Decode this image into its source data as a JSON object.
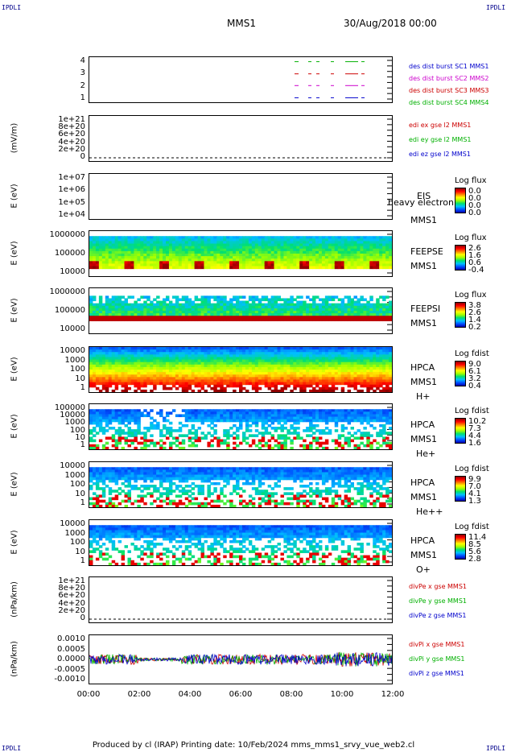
{
  "corner_label": "IPDLI",
  "header": {
    "spacecraft": "MMS1",
    "date": "30/Aug/2018 00:00"
  },
  "footer": {
    "text": "Produced by cl (IRAP)    Printing date: 10/Feb/2024    mms_mms1_srvy_vue_web2.cl"
  },
  "colors": {
    "red": "#cc0000",
    "green": "#00b000",
    "blue": "#0000cc",
    "magenta": "#cc00cc"
  },
  "chart_data": [
    {
      "type": "line",
      "ylabel": "",
      "ticks": [
        "4",
        "3",
        "2",
        "1"
      ],
      "legend": [
        {
          "text": "des dist burst SC1 MMS1",
          "color": "#0000cc"
        },
        {
          "text": "des dist burst SC2 MMS2",
          "color": "#cc00cc"
        },
        {
          "text": "des dist burst SC3 MMS3",
          "color": "#cc0000"
        },
        {
          "text": "des dist burst SC4 MMS4",
          "color": "#00b000"
        }
      ]
    },
    {
      "type": "line",
      "ylabel": "(mV/m)",
      "ticks": [
        "1e+21",
        "8e+20",
        "6e+20",
        "4e+20",
        "2e+20",
        "0"
      ],
      "legend": [
        {
          "text": "edi ex gse l2 MMS1",
          "color": "#cc0000"
        },
        {
          "text": "edi ey gse l2 MMS1",
          "color": "#00b000"
        },
        {
          "text": "edi ez gse l2 MMS1",
          "color": "#0000cc"
        }
      ]
    },
    {
      "type": "heatmap",
      "ylabel": "E (eV)",
      "ticks": [
        "1e+07",
        "1e+06",
        "1e+05",
        "1e+04"
      ],
      "instrument": [
        "EIS",
        "MMS1"
      ],
      "overlay": "heavy electron to",
      "colorbar": {
        "title": "Log flux",
        "values": [
          "0.0",
          "0.0",
          "0.0",
          "0.0"
        ]
      }
    },
    {
      "type": "heatmap",
      "ylabel": "E (eV)",
      "ticks": [
        "1000000",
        "100000",
        "10000"
      ],
      "instrument": [
        "FEEPSE",
        "MMS1"
      ],
      "colorbar": {
        "title": "Log flux",
        "values": [
          "2.6",
          "1.6",
          "0.6",
          "-0.4"
        ]
      }
    },
    {
      "type": "heatmap",
      "ylabel": "E (eV)",
      "ticks": [
        "1000000",
        "100000",
        "10000"
      ],
      "instrument": [
        "FEEPSI",
        "MMS1"
      ],
      "colorbar": {
        "title": "Log flux",
        "values": [
          "3.8",
          "2.6",
          "1.4",
          "0.2"
        ]
      }
    },
    {
      "type": "heatmap",
      "ylabel": "E (eV)",
      "ticks": [
        "10000",
        "1000",
        "100",
        "10",
        "1"
      ],
      "instrument": [
        "HPCA",
        "MMS1",
        "H+"
      ],
      "colorbar": {
        "title": "Log fdist",
        "values": [
          "9.0",
          "6.1",
          "3.2",
          "0.4"
        ]
      }
    },
    {
      "type": "heatmap",
      "ylabel": "E (eV)",
      "ticks": [
        "100000",
        "10000",
        "1000",
        "100",
        "10",
        "1"
      ],
      "instrument": [
        "HPCA",
        "MMS1",
        "He+"
      ],
      "colorbar": {
        "title": "Log fdist",
        "values": [
          "10.2",
          "7.3",
          "4.4",
          "1.6"
        ]
      }
    },
    {
      "type": "heatmap",
      "ylabel": "E (eV)",
      "ticks": [
        "10000",
        "1000",
        "100",
        "10",
        "1"
      ],
      "instrument": [
        "HPCA",
        "MMS1",
        "He++"
      ],
      "colorbar": {
        "title": "Log fdist",
        "values": [
          "9.9",
          "7.0",
          "4.1",
          "1.3"
        ]
      }
    },
    {
      "type": "heatmap",
      "ylabel": "E (eV)",
      "ticks": [
        "10000",
        "1000",
        "100",
        "10",
        "1"
      ],
      "instrument": [
        "HPCA",
        "MMS1",
        "O+"
      ],
      "colorbar": {
        "title": "Log fdist",
        "values": [
          "11.4",
          "8.5",
          "5.6",
          "2.8"
        ]
      }
    },
    {
      "type": "line",
      "ylabel": "(nPa/km)",
      "ticks": [
        "1e+21",
        "8e+20",
        "6e+20",
        "4e+20",
        "2e+20",
        "0"
      ],
      "legend": [
        {
          "text": "divPe x gse MMS1",
          "color": "#cc0000"
        },
        {
          "text": "divPe y gse MMS1",
          "color": "#00b000"
        },
        {
          "text": "divPe z gse MMS1",
          "color": "#0000cc"
        }
      ]
    },
    {
      "type": "line",
      "ylabel": "(nPa/km)",
      "ticks": [
        "0.0010",
        "0.0005",
        "0.0000",
        "-0.0005",
        "-0.0010"
      ],
      "ylim": [
        -0.0012,
        0.0012
      ],
      "legend": [
        {
          "text": "divPi x gse MMS1",
          "color": "#cc0000"
        },
        {
          "text": "divPi y gse MMS1",
          "color": "#00b000"
        },
        {
          "text": "divPi z gse MMS1",
          "color": "#0000cc"
        }
      ]
    }
  ],
  "x_axis": {
    "ticks": [
      "00:00",
      "02:00",
      "04:00",
      "06:00",
      "08:00",
      "10:00",
      "12:00"
    ]
  }
}
